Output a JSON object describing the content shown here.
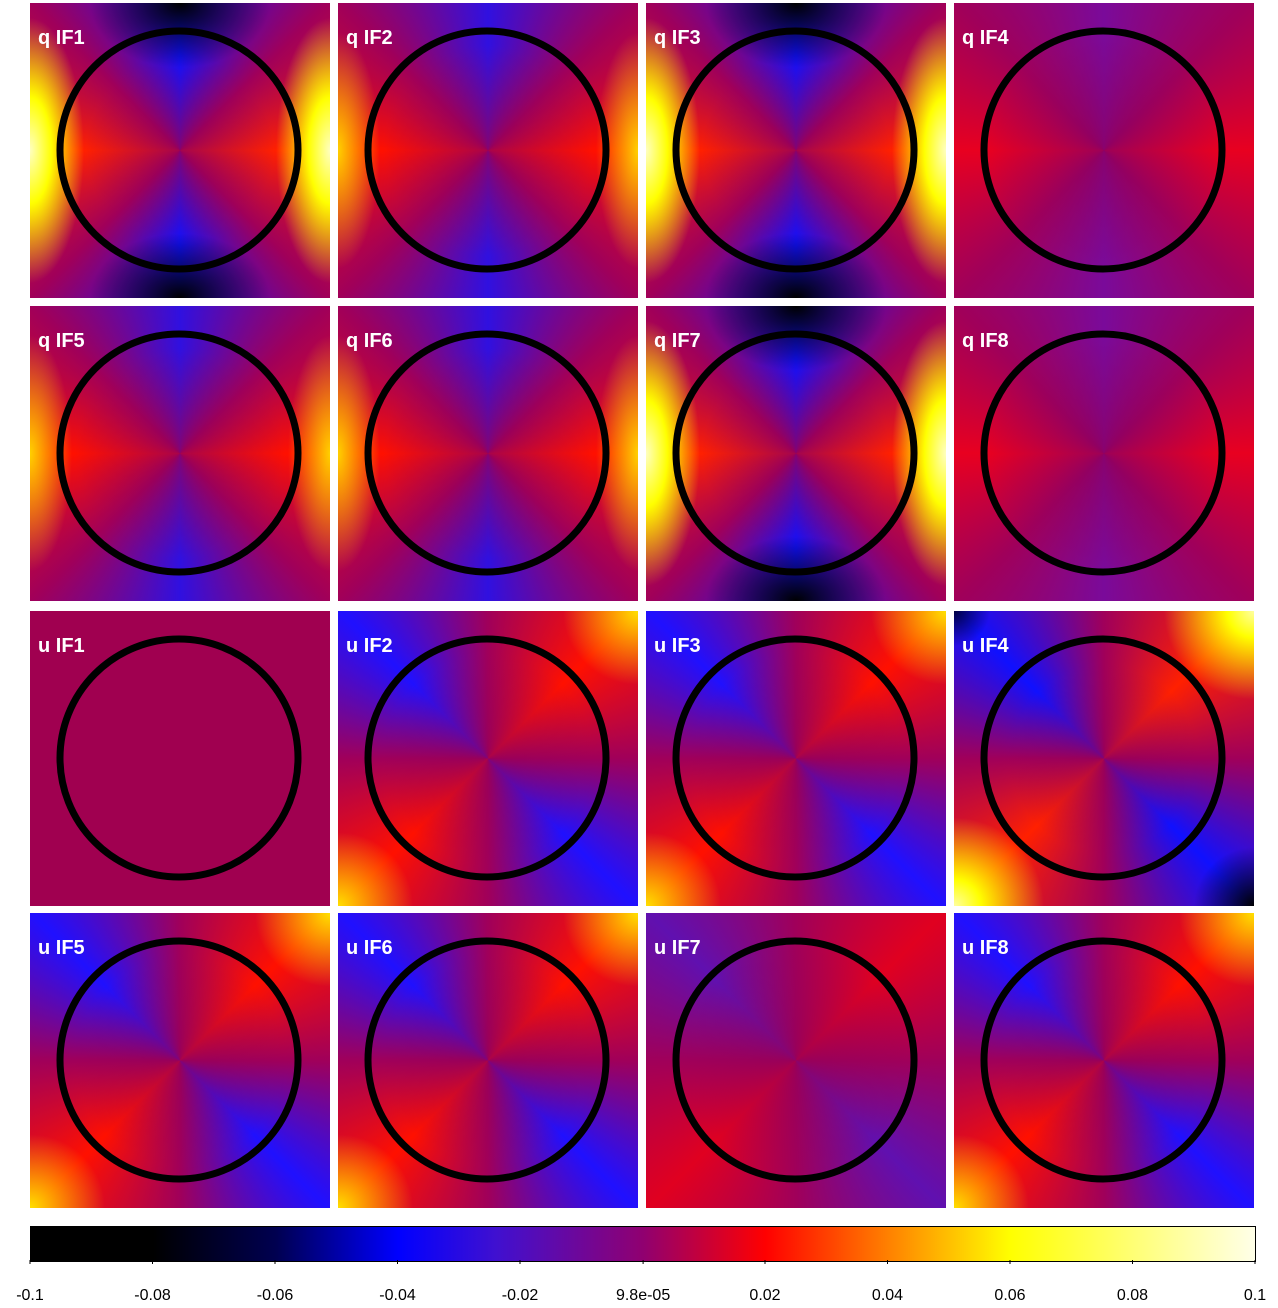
{
  "chart_data": {
    "type": "heatmap",
    "panels": [
      "q IF1",
      "q IF2",
      "q IF3",
      "q IF4",
      "q IF5",
      "q IF6",
      "q IF7",
      "q IF8",
      "u IF1",
      "u IF2",
      "u IF3",
      "u IF4",
      "u IF5",
      "u IF6",
      "u IF7",
      "u IF8"
    ],
    "xlim": [
      -0.1,
      0.1
    ],
    "xticks": [
      -0.1,
      -0.08,
      -0.06,
      -0.04,
      -0.02,
      {
        "value": 9.8e-05,
        "label": "9.8e-05"
      },
      0.02,
      0.04,
      0.06,
      0.08,
      0.1
    ]
  }
}
